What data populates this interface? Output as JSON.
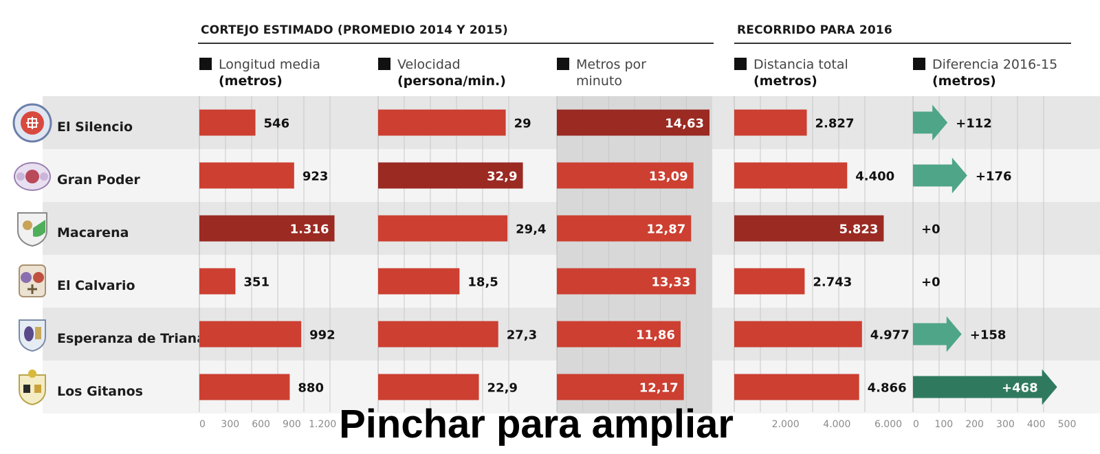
{
  "caption": "Pinchar para ampliar",
  "groups": [
    {
      "title": "CORTEJO ESTIMADO (PROMEDIO 2014 Y 2015)"
    },
    {
      "title": "RECORRIDO PARA 2016"
    }
  ],
  "colors": {
    "bar": "#cc3f31",
    "bar_highlight": "#9a2a22",
    "arrow": "#4fa588",
    "arrow_highlight": "#2f7a5f",
    "band_dark": "#e6e6e6",
    "band_light": "#f4f4f4",
    "panel_shade": "#d8d8d8"
  },
  "chart_data": {
    "type": "bar",
    "orientation": "horizontal",
    "categories": [
      "El Silencio",
      "Gran Poder",
      "Macarena",
      "El Calvario",
      "Esperanza de Triana",
      "Los Gitanos"
    ],
    "series": [
      {
        "name_line1": "Longitud media",
        "name_line2": "(metros)",
        "values": [
          546,
          923,
          1316,
          351,
          992,
          880
        ],
        "labels": [
          "546",
          "923",
          "1.316",
          "351",
          "992",
          "880"
        ],
        "highlight": [
          false,
          false,
          true,
          false,
          false,
          false
        ],
        "xlim": [
          0,
          1500
        ],
        "ticks": [
          "0",
          "300",
          "600",
          "900",
          "1.200"
        ]
      },
      {
        "name_line1": "Velocidad",
        "name_line2": "(persona/min.)",
        "values": [
          29,
          32.9,
          29.4,
          18.5,
          27.3,
          22.9
        ],
        "labels": [
          "29",
          "32,9",
          "29,4",
          "18,5",
          "27,3",
          "22,9"
        ],
        "highlight": [
          false,
          true,
          false,
          false,
          false,
          false
        ],
        "xlim": [
          0,
          35
        ],
        "ticks": []
      },
      {
        "name_line1": "Metros por",
        "name_line2": "minuto",
        "values": [
          14.63,
          13.09,
          12.87,
          13.33,
          11.86,
          12.17
        ],
        "labels": [
          "14,63",
          "13,09",
          "12,87",
          "13,33",
          "11,86",
          "12,17"
        ],
        "highlight": [
          true,
          false,
          false,
          false,
          false,
          false
        ],
        "xlim": [
          0,
          14.63
        ],
        "ticks": []
      },
      {
        "name_line1": "Distancia total",
        "name_line2": "(metros)",
        "values": [
          2827,
          4400,
          5823,
          2743,
          4977,
          4866
        ],
        "labels": [
          "2.827",
          "4.400",
          "5.823",
          "2.743",
          "4.977",
          "4.866"
        ],
        "highlight": [
          false,
          false,
          true,
          false,
          false,
          false
        ],
        "xlim": [
          0,
          6000
        ],
        "ticks": [
          "2.000",
          "4.000",
          "6.000"
        ]
      },
      {
        "name_line1": "Diferencia 2016-15",
        "name_line2": "(metros)",
        "values": [
          112,
          176,
          0,
          0,
          158,
          468
        ],
        "labels": [
          "+112",
          "+176",
          "+0",
          "+0",
          "+158",
          "+468"
        ],
        "highlight": [
          false,
          false,
          false,
          false,
          false,
          true
        ],
        "xlim": [
          0,
          500
        ],
        "ticks": [
          "0",
          "100",
          "200",
          "300",
          "400",
          "500"
        ]
      }
    ]
  }
}
